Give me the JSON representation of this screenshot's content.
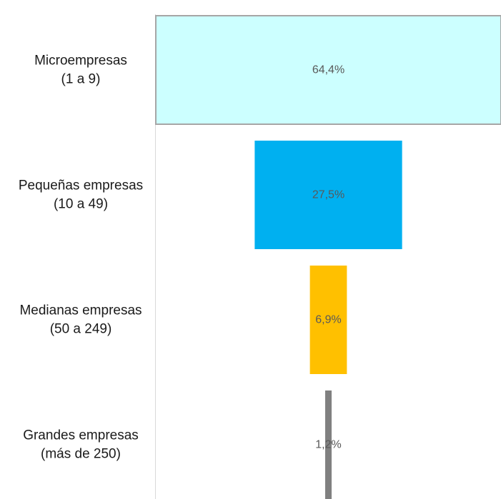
{
  "chart_data": {
    "type": "bar",
    "subtype": "funnel",
    "categories": [
      [
        "Microempresas",
        "(1 a 9)"
      ],
      [
        "Pequeñas empresas",
        "(10 a 49)"
      ],
      [
        "Medianas empresas",
        "(50 a 249)"
      ],
      [
        "Grandes empresas",
        "(más de 250)"
      ]
    ],
    "values": [
      64.4,
      27.5,
      6.9,
      1.2
    ],
    "data_labels": [
      "64,4%",
      "27,5%",
      "6,9%",
      "1,2%"
    ],
    "colors": [
      "#ccffff",
      "#00b0f0",
      "#ffc000",
      "#808080"
    ],
    "border_colors": [
      "#a6a6a6",
      "none",
      "none",
      "none"
    ],
    "label_colors": [
      "#595959",
      "#595959",
      "#595959",
      "#1a1a1a"
    ],
    "axis_line_color": "#d9d9d9",
    "grid": false,
    "legend": false,
    "title": "",
    "xlabel": "",
    "ylabel": ""
  }
}
